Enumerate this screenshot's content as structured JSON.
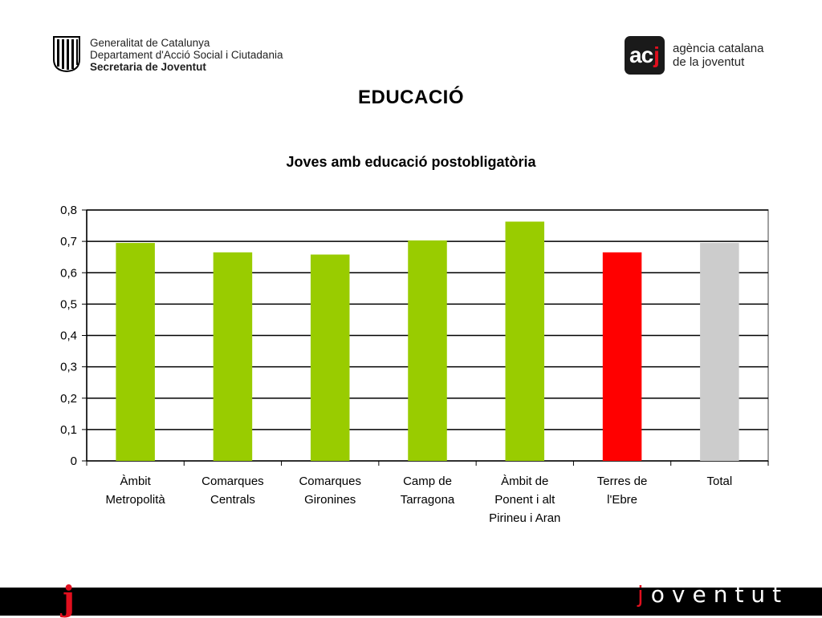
{
  "header": {
    "org_lines": [
      "Generalitat de Catalunya",
      "Departament d'Acció Social i Ciutadania"
    ],
    "org_bold_line": "Secretaria de Joventut",
    "agency_logo": {
      "letters_white": "ac",
      "letter_red": "j"
    },
    "agency_lines": [
      "agència catalana",
      "de la joventut"
    ]
  },
  "page_title": "EDUCACIÓ",
  "footer": {
    "mark": "j",
    "brand_first": "j",
    "brand_rest": "oventut"
  },
  "colors": {
    "green": "#99cc00",
    "red": "#ff0000",
    "gray": "#cccccc",
    "brand_red": "#e10f1e"
  },
  "chart_data": {
    "type": "bar",
    "title": "Joves amb educació postobligatòria",
    "xlabel": "",
    "ylabel": "",
    "ylim": [
      0,
      0.8
    ],
    "yticks": [
      "0",
      "0,1",
      "0,2",
      "0,3",
      "0,4",
      "0,5",
      "0,6",
      "0,7",
      "0,8"
    ],
    "grid": true,
    "categories": [
      [
        "Àmbit",
        "Metropolità"
      ],
      [
        "Comarques",
        "Centrals"
      ],
      [
        "Comarques",
        "Gironines"
      ],
      [
        "Camp de",
        "Tarragona"
      ],
      [
        "Àmbit de",
        "Ponent i alt",
        "Pirineu i Aran"
      ],
      [
        "Terres de",
        "l'Ebre"
      ],
      [
        "Total"
      ]
    ],
    "values": [
      0.695,
      0.665,
      0.658,
      0.703,
      0.763,
      0.665,
      0.695
    ],
    "bar_colors": [
      "#99cc00",
      "#99cc00",
      "#99cc00",
      "#99cc00",
      "#99cc00",
      "#ff0000",
      "#cccccc"
    ]
  }
}
